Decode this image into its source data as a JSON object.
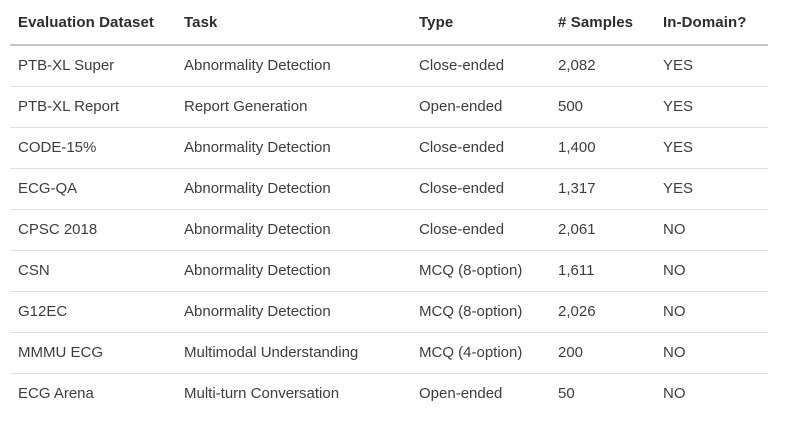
{
  "chart_data": {
    "type": "table",
    "columns": [
      "Evaluation Dataset",
      "Task",
      "Type",
      "# Samples",
      "In-Domain?"
    ],
    "rows": [
      {
        "dataset": "PTB-XL Super",
        "task": "Abnormality Detection",
        "type": "Close-ended",
        "samples": "2,082",
        "in_domain": "YES"
      },
      {
        "dataset": "PTB-XL Report",
        "task": "Report Generation",
        "type": "Open-ended",
        "samples": "500",
        "in_domain": "YES"
      },
      {
        "dataset": "CODE-15%",
        "task": "Abnormality Detection",
        "type": "Close-ended",
        "samples": "1,400",
        "in_domain": "YES"
      },
      {
        "dataset": "ECG-QA",
        "task": "Abnormality Detection",
        "type": "Close-ended",
        "samples": "1,317",
        "in_domain": "YES"
      },
      {
        "dataset": "CPSC 2018",
        "task": "Abnormality Detection",
        "type": "Close-ended",
        "samples": "2,061",
        "in_domain": "NO"
      },
      {
        "dataset": "CSN",
        "task": "Abnormality Detection",
        "type": "MCQ (8-option)",
        "samples": "1,611",
        "in_domain": "NO"
      },
      {
        "dataset": "G12EC",
        "task": "Abnormality Detection",
        "type": "MCQ (8-option)",
        "samples": "2,026",
        "in_domain": "NO"
      },
      {
        "dataset": "MMMU ECG",
        "task": "Multimodal Understanding",
        "type": "MCQ (4-option)",
        "samples": "200",
        "in_domain": "NO"
      },
      {
        "dataset": "ECG Arena",
        "task": "Multi-turn Conversation",
        "type": "Open-ended",
        "samples": "50",
        "in_domain": "NO"
      }
    ],
    "layout": {
      "grid": "horizontal-row-separators",
      "header_position": "top"
    }
  },
  "colors": {
    "background": "#ffffff",
    "header_text": "#2d2d2d",
    "body_text": "#3d3d3d",
    "header_border": "#c4c4c4",
    "row_border": "#e0e0e0"
  }
}
